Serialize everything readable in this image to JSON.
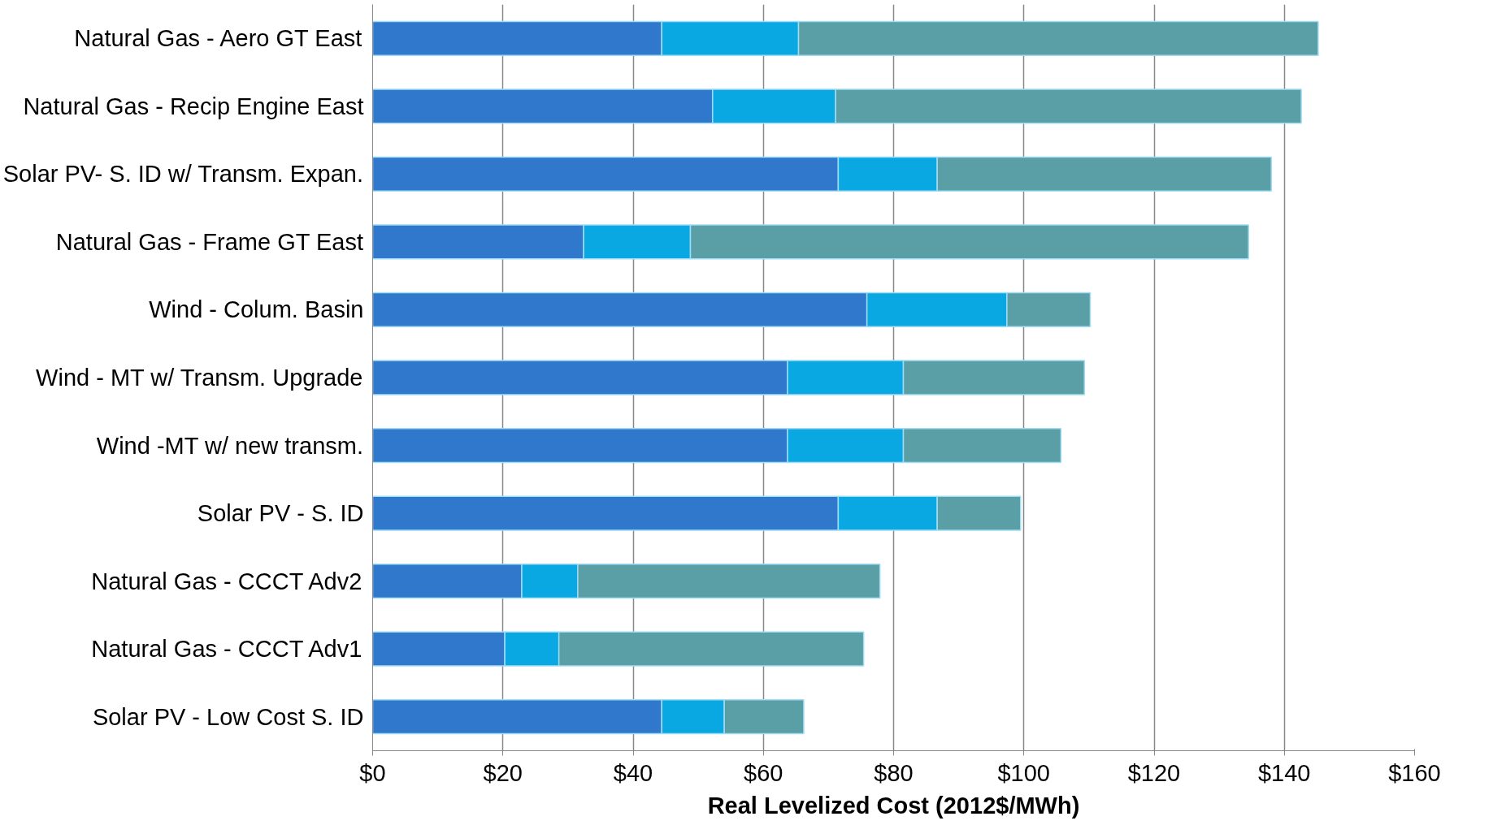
{
  "chart_data": {
    "type": "bar",
    "orientation": "horizontal",
    "stacked": true,
    "xlabel": "Real Levelized Cost (2012$/MWh)",
    "categories": [
      "Natural Gas - Aero GT East",
      "Natural Gas - Recip Engine East",
      "Solar PV- S. ID w/ Transm. Expan.",
      "Natural Gas - Frame GT East",
      "Wind - Colum. Basin",
      "Wind - MT w/ Transm. Upgrade",
      "Wind -MT w/ new transm.",
      "Solar PV - S. ID",
      "Natural Gas - CCCT Adv2",
      "Natural Gas - CCCT Adv1",
      "Solar PV - Low Cost S. ID"
    ],
    "series": [
      {
        "color": "#2f78cc",
        "values": [
          44.4,
          52.2,
          71.5,
          32.4,
          75.9,
          63.7,
          63.7,
          71.5,
          22.9,
          20.3,
          44.4
        ]
      },
      {
        "color": "#0aa8e2",
        "values": [
          21.0,
          18.9,
          15.2,
          16.4,
          21.5,
          17.8,
          17.8,
          15.2,
          8.6,
          8.3,
          9.6
        ]
      },
      {
        "color": "#5a9ea6",
        "values": [
          79.8,
          71.5,
          51.3,
          85.7,
          12.8,
          27.8,
          24.2,
          12.8,
          46.4,
          46.8,
          12.2
        ]
      }
    ],
    "xlim": [
      0,
      160
    ],
    "xticks": [
      {
        "value": 0,
        "label": "$0"
      },
      {
        "value": 20,
        "label": "$20"
      },
      {
        "value": 40,
        "label": "$40"
      },
      {
        "value": 60,
        "label": "$60"
      },
      {
        "value": 80,
        "label": "$80"
      },
      {
        "value": 100,
        "label": "$100"
      },
      {
        "value": 120,
        "label": "$120"
      },
      {
        "value": 140,
        "label": "$140"
      },
      {
        "value": 160,
        "label": "$160"
      }
    ],
    "grid": "x"
  }
}
